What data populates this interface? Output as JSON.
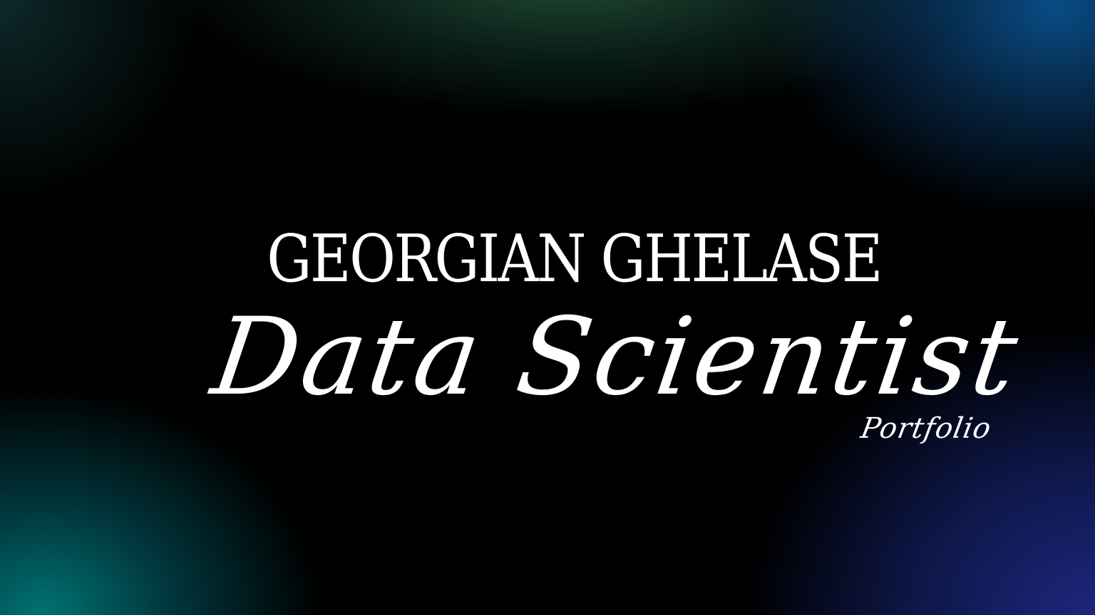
{
  "hero": {
    "name": "GEORGIAN GHELASE",
    "title": "Data Scientist",
    "tagline": "Portfolio"
  },
  "colors": {
    "background": "#000000",
    "text": "#ffffff",
    "glow_bottom_left": "#007878",
    "glow_bottom_right": "#1e2882",
    "glow_top_right": "#0a508c",
    "glow_top_center": "#285a3c"
  }
}
